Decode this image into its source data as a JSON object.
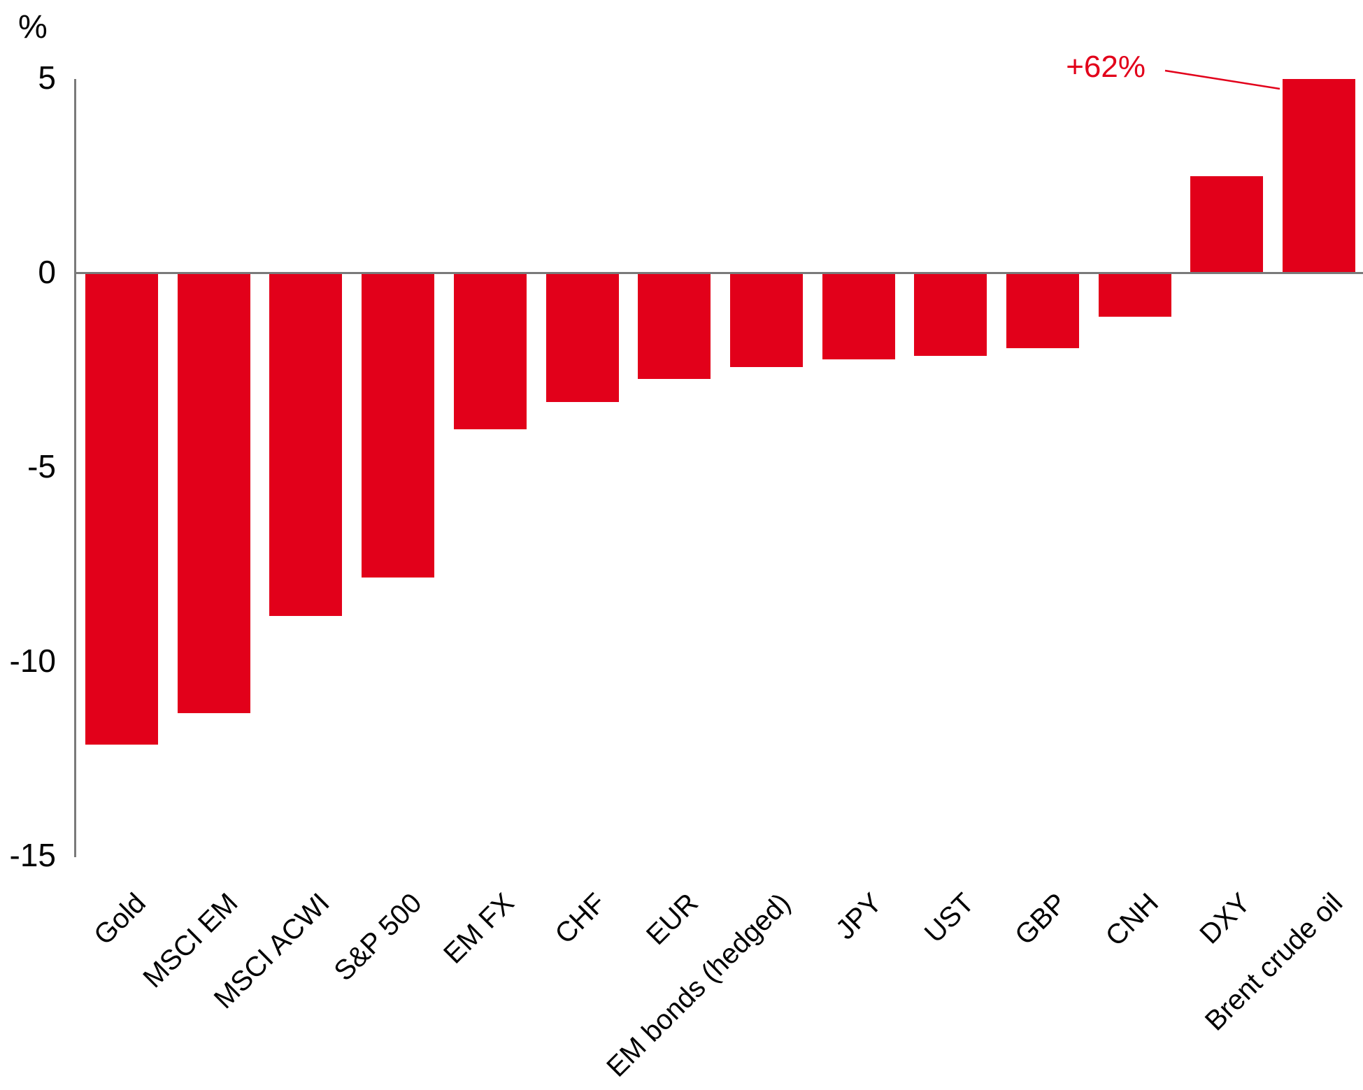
{
  "chart_data": {
    "type": "bar",
    "title": "",
    "ylabel": "%",
    "categories": [
      "Gold",
      "MSCI EM",
      "MSCI ACWI",
      "S&P 500",
      "EM FX",
      "CHF",
      "EUR",
      "EM bonds (hedged)",
      "JPY",
      "UST",
      "GBP",
      "CNH",
      "DXY",
      "Brent crude oil"
    ],
    "values": [
      -12.1,
      -11.3,
      -8.8,
      -7.8,
      -4.0,
      -3.3,
      -2.7,
      -2.4,
      -2.2,
      -2.1,
      -1.9,
      -1.1,
      2.5,
      62
    ],
    "yticks": [
      5,
      0,
      -5,
      -10,
      -15
    ],
    "ylim": [
      -15,
      5
    ],
    "clip_max": 5,
    "grid": "off",
    "legend": "none",
    "annotation": {
      "text": "+62%",
      "target_category": "Brent crude oil",
      "actual_value": 62,
      "note": "bar clipped at +5 on axis"
    },
    "colors": {
      "bar": "#e2001a",
      "annotation": "#e2001a",
      "axis": "#7a7a7a",
      "text": "#000000"
    }
  }
}
